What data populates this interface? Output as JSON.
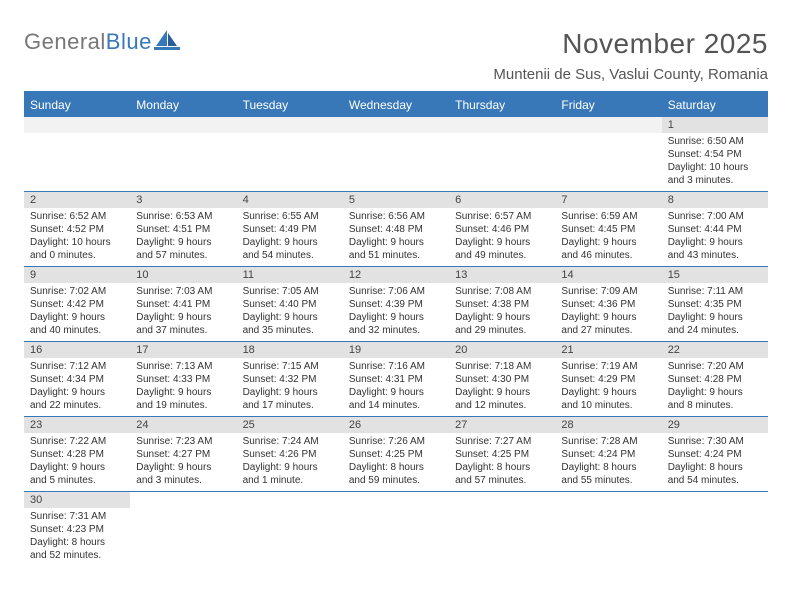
{
  "logo": {
    "part1": "General",
    "part2": "Blue"
  },
  "title": "November 2025",
  "location": "Muntenii de Sus, Vaslui County, Romania",
  "colors": {
    "header_bg": "#3878b8",
    "header_text": "#ffffff",
    "daynum_bg": "#e2e2e2",
    "text": "#333333",
    "divider": "#3878b8"
  },
  "days_of_week": [
    "Sunday",
    "Monday",
    "Tuesday",
    "Wednesday",
    "Thursday",
    "Friday",
    "Saturday"
  ],
  "weeks": [
    [
      null,
      null,
      null,
      null,
      null,
      null,
      {
        "n": "1",
        "sunrise": "Sunrise: 6:50 AM",
        "sunset": "Sunset: 4:54 PM",
        "day1": "Daylight: 10 hours",
        "day2": "and 3 minutes."
      }
    ],
    [
      {
        "n": "2",
        "sunrise": "Sunrise: 6:52 AM",
        "sunset": "Sunset: 4:52 PM",
        "day1": "Daylight: 10 hours",
        "day2": "and 0 minutes."
      },
      {
        "n": "3",
        "sunrise": "Sunrise: 6:53 AM",
        "sunset": "Sunset: 4:51 PM",
        "day1": "Daylight: 9 hours",
        "day2": "and 57 minutes."
      },
      {
        "n": "4",
        "sunrise": "Sunrise: 6:55 AM",
        "sunset": "Sunset: 4:49 PM",
        "day1": "Daylight: 9 hours",
        "day2": "and 54 minutes."
      },
      {
        "n": "5",
        "sunrise": "Sunrise: 6:56 AM",
        "sunset": "Sunset: 4:48 PM",
        "day1": "Daylight: 9 hours",
        "day2": "and 51 minutes."
      },
      {
        "n": "6",
        "sunrise": "Sunrise: 6:57 AM",
        "sunset": "Sunset: 4:46 PM",
        "day1": "Daylight: 9 hours",
        "day2": "and 49 minutes."
      },
      {
        "n": "7",
        "sunrise": "Sunrise: 6:59 AM",
        "sunset": "Sunset: 4:45 PM",
        "day1": "Daylight: 9 hours",
        "day2": "and 46 minutes."
      },
      {
        "n": "8",
        "sunrise": "Sunrise: 7:00 AM",
        "sunset": "Sunset: 4:44 PM",
        "day1": "Daylight: 9 hours",
        "day2": "and 43 minutes."
      }
    ],
    [
      {
        "n": "9",
        "sunrise": "Sunrise: 7:02 AM",
        "sunset": "Sunset: 4:42 PM",
        "day1": "Daylight: 9 hours",
        "day2": "and 40 minutes."
      },
      {
        "n": "10",
        "sunrise": "Sunrise: 7:03 AM",
        "sunset": "Sunset: 4:41 PM",
        "day1": "Daylight: 9 hours",
        "day2": "and 37 minutes."
      },
      {
        "n": "11",
        "sunrise": "Sunrise: 7:05 AM",
        "sunset": "Sunset: 4:40 PM",
        "day1": "Daylight: 9 hours",
        "day2": "and 35 minutes."
      },
      {
        "n": "12",
        "sunrise": "Sunrise: 7:06 AM",
        "sunset": "Sunset: 4:39 PM",
        "day1": "Daylight: 9 hours",
        "day2": "and 32 minutes."
      },
      {
        "n": "13",
        "sunrise": "Sunrise: 7:08 AM",
        "sunset": "Sunset: 4:38 PM",
        "day1": "Daylight: 9 hours",
        "day2": "and 29 minutes."
      },
      {
        "n": "14",
        "sunrise": "Sunrise: 7:09 AM",
        "sunset": "Sunset: 4:36 PM",
        "day1": "Daylight: 9 hours",
        "day2": "and 27 minutes."
      },
      {
        "n": "15",
        "sunrise": "Sunrise: 7:11 AM",
        "sunset": "Sunset: 4:35 PM",
        "day1": "Daylight: 9 hours",
        "day2": "and 24 minutes."
      }
    ],
    [
      {
        "n": "16",
        "sunrise": "Sunrise: 7:12 AM",
        "sunset": "Sunset: 4:34 PM",
        "day1": "Daylight: 9 hours",
        "day2": "and 22 minutes."
      },
      {
        "n": "17",
        "sunrise": "Sunrise: 7:13 AM",
        "sunset": "Sunset: 4:33 PM",
        "day1": "Daylight: 9 hours",
        "day2": "and 19 minutes."
      },
      {
        "n": "18",
        "sunrise": "Sunrise: 7:15 AM",
        "sunset": "Sunset: 4:32 PM",
        "day1": "Daylight: 9 hours",
        "day2": "and 17 minutes."
      },
      {
        "n": "19",
        "sunrise": "Sunrise: 7:16 AM",
        "sunset": "Sunset: 4:31 PM",
        "day1": "Daylight: 9 hours",
        "day2": "and 14 minutes."
      },
      {
        "n": "20",
        "sunrise": "Sunrise: 7:18 AM",
        "sunset": "Sunset: 4:30 PM",
        "day1": "Daylight: 9 hours",
        "day2": "and 12 minutes."
      },
      {
        "n": "21",
        "sunrise": "Sunrise: 7:19 AM",
        "sunset": "Sunset: 4:29 PM",
        "day1": "Daylight: 9 hours",
        "day2": "and 10 minutes."
      },
      {
        "n": "22",
        "sunrise": "Sunrise: 7:20 AM",
        "sunset": "Sunset: 4:28 PM",
        "day1": "Daylight: 9 hours",
        "day2": "and 8 minutes."
      }
    ],
    [
      {
        "n": "23",
        "sunrise": "Sunrise: 7:22 AM",
        "sunset": "Sunset: 4:28 PM",
        "day1": "Daylight: 9 hours",
        "day2": "and 5 minutes."
      },
      {
        "n": "24",
        "sunrise": "Sunrise: 7:23 AM",
        "sunset": "Sunset: 4:27 PM",
        "day1": "Daylight: 9 hours",
        "day2": "and 3 minutes."
      },
      {
        "n": "25",
        "sunrise": "Sunrise: 7:24 AM",
        "sunset": "Sunset: 4:26 PM",
        "day1": "Daylight: 9 hours",
        "day2": "and 1 minute."
      },
      {
        "n": "26",
        "sunrise": "Sunrise: 7:26 AM",
        "sunset": "Sunset: 4:25 PM",
        "day1": "Daylight: 8 hours",
        "day2": "and 59 minutes."
      },
      {
        "n": "27",
        "sunrise": "Sunrise: 7:27 AM",
        "sunset": "Sunset: 4:25 PM",
        "day1": "Daylight: 8 hours",
        "day2": "and 57 minutes."
      },
      {
        "n": "28",
        "sunrise": "Sunrise: 7:28 AM",
        "sunset": "Sunset: 4:24 PM",
        "day1": "Daylight: 8 hours",
        "day2": "and 55 minutes."
      },
      {
        "n": "29",
        "sunrise": "Sunrise: 7:30 AM",
        "sunset": "Sunset: 4:24 PM",
        "day1": "Daylight: 8 hours",
        "day2": "and 54 minutes."
      }
    ],
    [
      {
        "n": "30",
        "sunrise": "Sunrise: 7:31 AM",
        "sunset": "Sunset: 4:23 PM",
        "day1": "Daylight: 8 hours",
        "day2": "and 52 minutes."
      },
      null,
      null,
      null,
      null,
      null,
      null
    ]
  ]
}
